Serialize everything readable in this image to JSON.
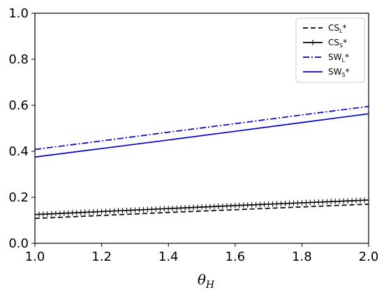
{
  "chart_data": {
    "type": "line",
    "xlabel": "θ",
    "xlabel_sub": "H",
    "ylabel": "",
    "title": "",
    "xlim": [
      1.0,
      2.0
    ],
    "ylim": [
      0.0,
      1.0
    ],
    "x_ticks": [
      "1.0",
      "1.2",
      "1.4",
      "1.6",
      "1.8",
      "2.0"
    ],
    "y_ticks": [
      "0.0",
      "0.2",
      "0.4",
      "0.6",
      "0.8",
      "1.0"
    ],
    "grid": false,
    "legend_position": "top-right",
    "series": [
      {
        "name": "CS",
        "name_sub": "L",
        "name_suffix": "*",
        "color": "#000000",
        "style": "dashed",
        "x": [
          1.0,
          1.2,
          1.4,
          1.6,
          1.8,
          2.0
        ],
        "y": [
          0.108,
          0.121,
          0.134,
          0.146,
          0.158,
          0.17
        ]
      },
      {
        "name": "CS",
        "name_sub": "S",
        "name_suffix": "*",
        "color": "#000000",
        "style": "solid-tick-markers",
        "x": [
          1.0,
          1.2,
          1.4,
          1.6,
          1.8,
          2.0
        ],
        "y": [
          0.125,
          0.138,
          0.151,
          0.164,
          0.176,
          0.188
        ]
      },
      {
        "name": "SW",
        "name_sub": "L",
        "name_suffix": "*",
        "color": "#0000cc",
        "style": "dashdot",
        "x": [
          1.0,
          1.2,
          1.4,
          1.6,
          1.8,
          2.0
        ],
        "y": [
          0.408,
          0.445,
          0.483,
          0.52,
          0.558,
          0.595
        ]
      },
      {
        "name": "SW",
        "name_sub": "S",
        "name_suffix": "*",
        "color": "#0000cc",
        "style": "solid",
        "x": [
          1.0,
          1.2,
          1.4,
          1.6,
          1.8,
          2.0
        ],
        "y": [
          0.375,
          0.412,
          0.449,
          0.487,
          0.525,
          0.563
        ]
      }
    ]
  }
}
